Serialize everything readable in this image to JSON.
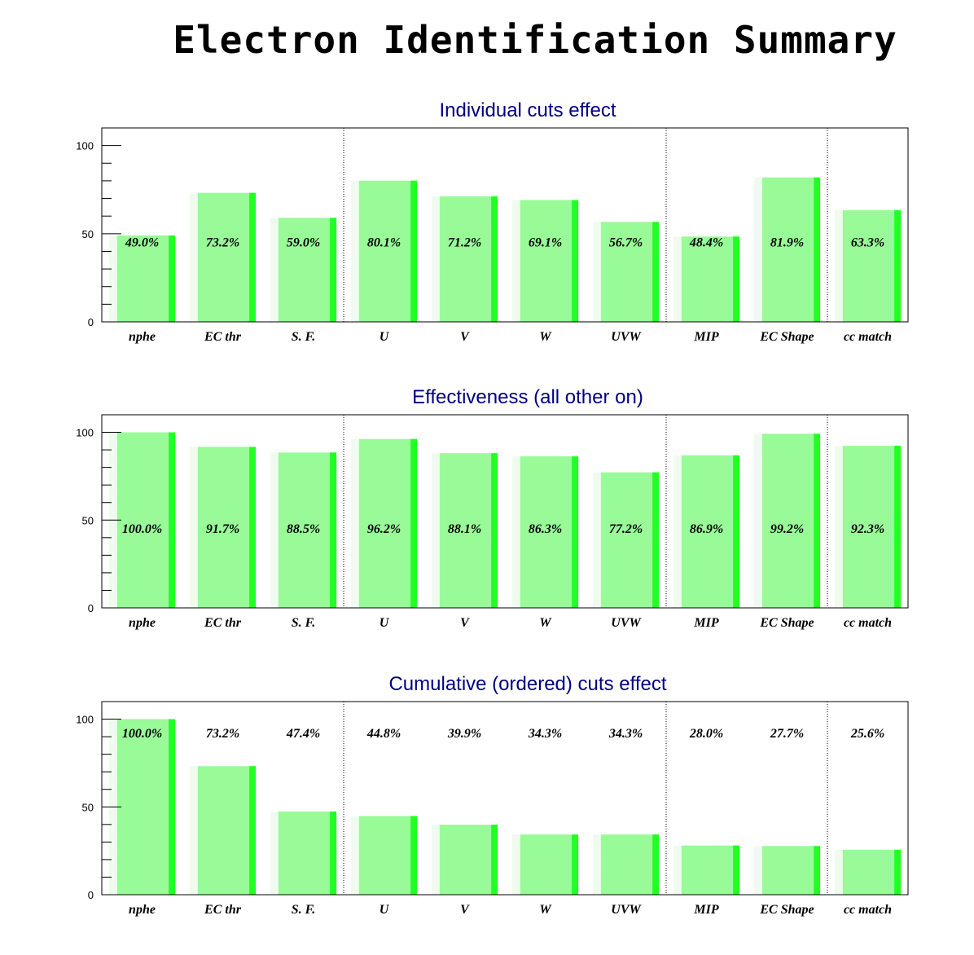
{
  "title": "Electron Identification Summary",
  "colors": {
    "bar_fill": "#98fb98",
    "bar_edge": "#22ff22",
    "bar_shadow": "#f0fbf0",
    "title_text": "#000080",
    "frame": "#000000"
  },
  "chart_data": [
    {
      "type": "bar",
      "title": "Individual cuts effect",
      "categories": [
        "nphe",
        "EC thr",
        "S. F.",
        "U",
        "V",
        "W",
        "UVW",
        "MIP",
        "EC Shape",
        "cc match"
      ],
      "values": [
        49.0,
        73.2,
        59.0,
        80.1,
        71.2,
        69.1,
        56.7,
        48.4,
        81.9,
        63.3
      ],
      "labels": [
        "49.0%",
        "73.2%",
        "59.0%",
        "80.1%",
        "71.2%",
        "69.1%",
        "56.7%",
        "48.4%",
        "81.9%",
        "63.3%"
      ],
      "label_value": 45,
      "ylim": [
        0,
        110
      ],
      "yticks": [
        "0",
        "50",
        "100"
      ],
      "separators_after": [
        2,
        6,
        8
      ]
    },
    {
      "type": "bar",
      "title": "Effectiveness (all other on)",
      "categories": [
        "nphe",
        "EC thr",
        "S. F.",
        "U",
        "V",
        "W",
        "UVW",
        "MIP",
        "EC Shape",
        "cc match"
      ],
      "values": [
        100.0,
        91.7,
        88.5,
        96.2,
        88.1,
        86.3,
        77.2,
        86.9,
        99.2,
        92.3
      ],
      "labels": [
        "100.0%",
        "91.7%",
        "88.5%",
        "96.2%",
        "88.1%",
        "86.3%",
        "77.2%",
        "86.9%",
        "99.2%",
        "92.3%"
      ],
      "label_value": 45,
      "ylim": [
        0,
        110
      ],
      "yticks": [
        "0",
        "50",
        "100"
      ],
      "separators_after": [
        2,
        6,
        8
      ]
    },
    {
      "type": "bar",
      "title": "Cumulative (ordered) cuts effect",
      "categories": [
        "nphe",
        "EC thr",
        "S. F.",
        "U",
        "V",
        "W",
        "UVW",
        "MIP",
        "EC Shape",
        "cc match"
      ],
      "values": [
        100.0,
        73.2,
        47.4,
        44.8,
        39.9,
        34.3,
        34.3,
        28.0,
        27.7,
        25.6
      ],
      "labels": [
        "100.0%",
        "73.2%",
        "47.4%",
        "44.8%",
        "39.9%",
        "34.3%",
        "34.3%",
        "28.0%",
        "27.7%",
        "25.6%"
      ],
      "label_value": 92,
      "ylim": [
        0,
        110
      ],
      "yticks": [
        "0",
        "50",
        "100"
      ],
      "separators_after": [
        2,
        6,
        8
      ]
    }
  ]
}
